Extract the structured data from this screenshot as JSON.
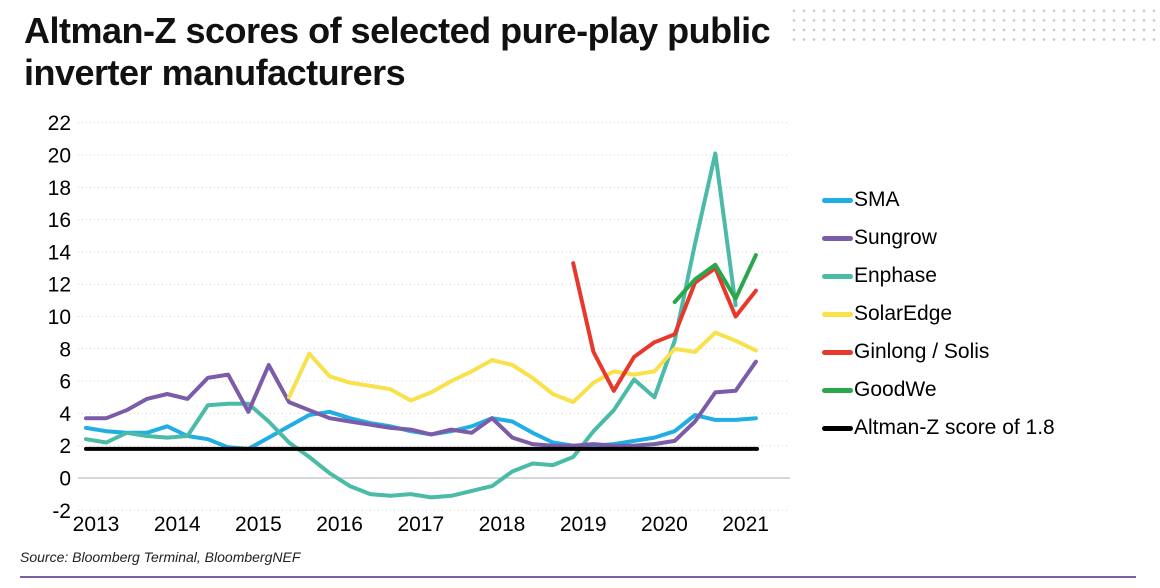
{
  "title": "Altman-Z scores of selected pure-play public inverter manufacturers",
  "source_note": "Source: Bloomberg Terminal, BloombergNEF",
  "decoration": {
    "dot_pattern_color": "#c6c6c6",
    "bottom_rule_color": "#7a5ea8"
  },
  "chart_data": {
    "type": "line",
    "title": "Altman-Z scores of selected pure-play public inverter manufacturers",
    "xlabel": "",
    "ylabel": "",
    "x_tick_labels": [
      "2013",
      "2014",
      "2015",
      "2016",
      "2017",
      "2018",
      "2019",
      "2020",
      "2021"
    ],
    "y_ticks": [
      -2,
      0,
      2,
      4,
      6,
      8,
      10,
      12,
      14,
      16,
      18,
      20,
      22
    ],
    "ylim": [
      -2,
      22
    ],
    "x_frequency": "quarterly",
    "x_start": "2013Q1",
    "x_end": "2021Q2",
    "grid": "horizontal dotted, solid line at 0",
    "legend_position": "right",
    "series": [
      {
        "name": "SMA",
        "color": "#21aee5",
        "values": [
          3.1,
          2.9,
          2.8,
          2.8,
          3.2,
          2.6,
          2.4,
          1.9,
          1.8,
          2.5,
          3.2,
          3.9,
          4.1,
          3.7,
          3.4,
          3.2,
          2.9,
          2.7,
          2.9,
          3.2,
          3.7,
          3.5,
          2.8,
          2.2,
          2.0,
          2.0,
          2.1,
          2.3,
          2.5,
          2.9,
          3.9,
          3.6,
          3.6,
          3.7
        ]
      },
      {
        "name": "Sungrow",
        "color": "#7a5ca8",
        "values": [
          3.7,
          3.7,
          4.2,
          4.9,
          5.2,
          4.9,
          6.2,
          6.4,
          4.1,
          7.0,
          4.7,
          4.2,
          3.7,
          3.5,
          3.3,
          3.1,
          3.0,
          2.7,
          3.0,
          2.8,
          3.7,
          2.5,
          2.1,
          2.0,
          2.0,
          2.1,
          2.0,
          2.0,
          2.1,
          2.3,
          3.5,
          5.3,
          5.4,
          7.2
        ]
      },
      {
        "name": "Enphase",
        "color": "#4bbba7",
        "values": [
          2.4,
          2.2,
          2.8,
          2.6,
          2.5,
          2.6,
          4.5,
          4.6,
          4.6,
          3.5,
          2.2,
          1.3,
          0.3,
          -0.5,
          -1.0,
          -1.1,
          -1.0,
          -1.2,
          -1.1,
          -0.8,
          -0.5,
          0.4,
          0.9,
          0.8,
          1.3,
          2.9,
          4.2,
          6.1,
          5.0,
          8.5,
          14.5,
          20.1,
          10.7,
          null
        ]
      },
      {
        "name": "SolarEdge",
        "color": "#f8e14b",
        "values": [
          null,
          null,
          null,
          null,
          null,
          null,
          null,
          null,
          null,
          null,
          5.0,
          7.7,
          6.3,
          5.9,
          5.7,
          5.5,
          4.8,
          5.3,
          6.0,
          6.6,
          7.3,
          7.0,
          6.2,
          5.2,
          4.7,
          5.9,
          6.6,
          6.4,
          6.6,
          8.0,
          7.8,
          9.0,
          8.5,
          7.9
        ]
      },
      {
        "name": "Ginlong / Solis",
        "color": "#e6382c",
        "values": [
          null,
          null,
          null,
          null,
          null,
          null,
          null,
          null,
          null,
          null,
          null,
          null,
          null,
          null,
          null,
          null,
          null,
          null,
          null,
          null,
          null,
          null,
          null,
          null,
          13.3,
          7.8,
          5.4,
          7.5,
          8.4,
          8.9,
          12.1,
          13.0,
          10.0,
          11.6
        ]
      },
      {
        "name": "GoodWe",
        "color": "#2aa74d",
        "values": [
          null,
          null,
          null,
          null,
          null,
          null,
          null,
          null,
          null,
          null,
          null,
          null,
          null,
          null,
          null,
          null,
          null,
          null,
          null,
          null,
          null,
          null,
          null,
          null,
          null,
          null,
          null,
          null,
          null,
          10.9,
          12.3,
          13.2,
          11.1,
          13.8
        ]
      },
      {
        "name": "Altman-Z score of 1.8",
        "color": "#000000",
        "type": "reference",
        "value": 1.8
      }
    ]
  }
}
